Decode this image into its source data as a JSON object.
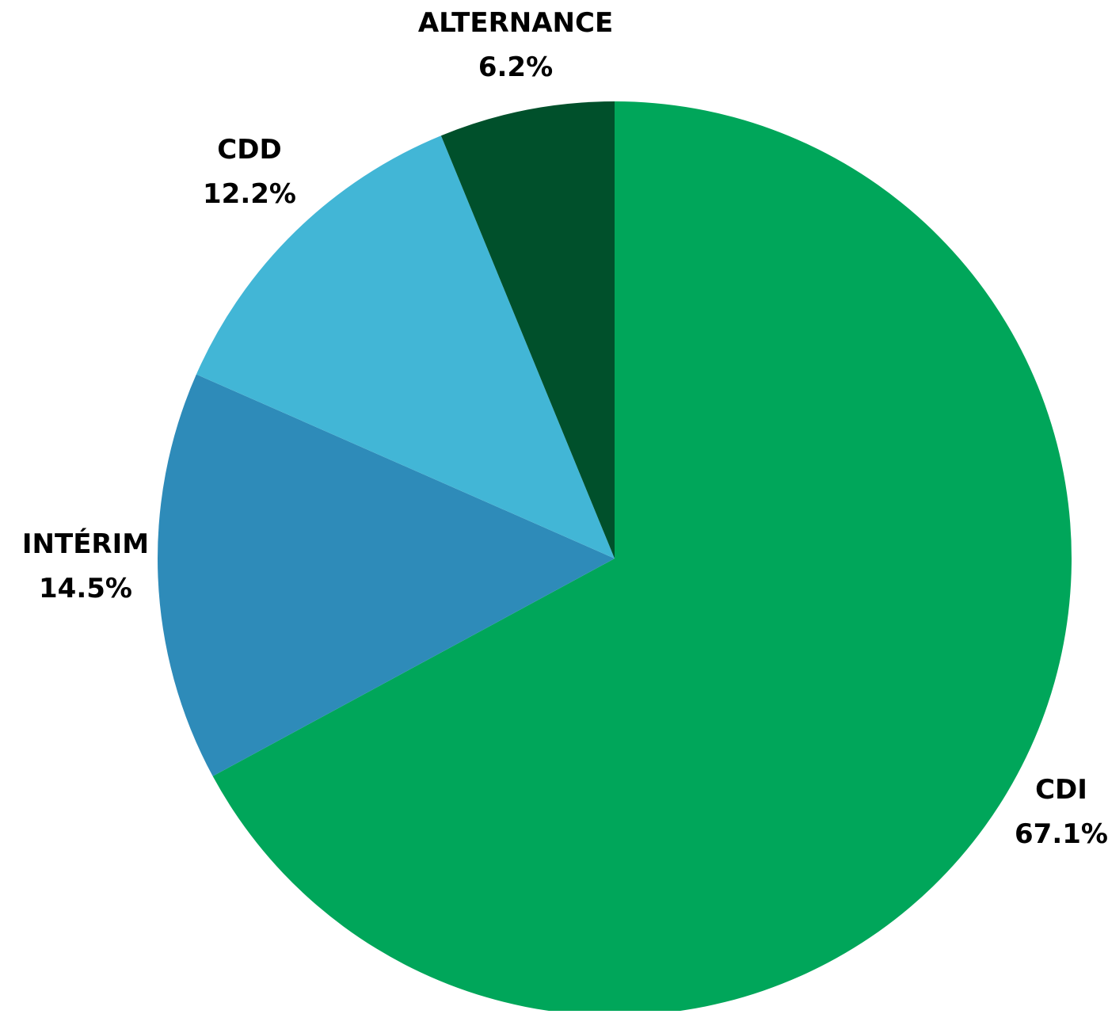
{
  "chart_data": {
    "type": "pie",
    "title": "",
    "start": "12 o'clock",
    "direction": "clockwise",
    "slices": [
      {
        "label": "CDI",
        "value": 67.1,
        "value_label": "67.1%",
        "color": "#00A65A"
      },
      {
        "label": "INTÉRIM",
        "value": 14.5,
        "value_label": "14.5%",
        "color": "#2E8BB9"
      },
      {
        "label": "CDD",
        "value": 12.2,
        "value_label": "12.2%",
        "color": "#42B6D6"
      },
      {
        "label": "ALTERNANCE",
        "value": 6.2,
        "value_label": "6.2%",
        "color": "#00502B"
      }
    ],
    "legend": "none"
  }
}
